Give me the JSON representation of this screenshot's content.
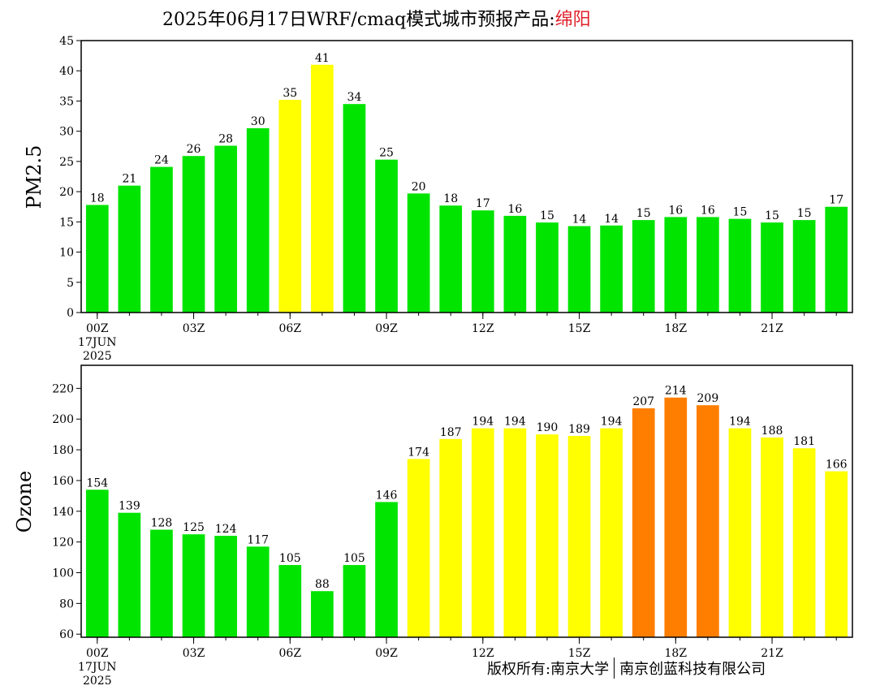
{
  "title": {
    "prefix": "2025年06月17日WRF/cmaq模式城市预报产品:",
    "city": "绵阳"
  },
  "footer": {
    "left": "版权所有:南京大学",
    "right": "南京创蓝科技有限公司"
  },
  "colors": {
    "good": "#00e400",
    "moderate": "#ffff00",
    "unhealthy_sensitive": "#ff7e00"
  },
  "chart_data": [
    {
      "type": "bar",
      "ylabel": "PM2.5",
      "ylim": [
        0,
        45
      ],
      "yticks": [
        0,
        5,
        10,
        15,
        20,
        25,
        30,
        35,
        40,
        45
      ],
      "x_tick_labels": [
        {
          "index": 0,
          "lines": [
            "00Z",
            "17JUN",
            "2025"
          ]
        },
        {
          "index": 3,
          "lines": [
            "03Z"
          ]
        },
        {
          "index": 6,
          "lines": [
            "06Z"
          ]
        },
        {
          "index": 9,
          "lines": [
            "09Z"
          ]
        },
        {
          "index": 12,
          "lines": [
            "12Z"
          ]
        },
        {
          "index": 15,
          "lines": [
            "15Z"
          ]
        },
        {
          "index": 18,
          "lines": [
            "18Z"
          ]
        },
        {
          "index": 21,
          "lines": [
            "21Z"
          ]
        }
      ],
      "values": [
        17.8,
        21.0,
        24.1,
        25.9,
        27.6,
        30.5,
        35.2,
        41.0,
        34.5,
        25.3,
        19.7,
        17.7,
        16.9,
        16.0,
        14.9,
        14.3,
        14.4,
        15.3,
        15.8,
        15.8,
        15.5,
        14.9,
        15.3,
        17.5
      ],
      "labels": [
        "18",
        "21",
        "24",
        "26",
        "28",
        "30",
        "35",
        "41",
        "34",
        "25",
        "20",
        "18",
        "17",
        "16",
        "15",
        "14",
        "14",
        "15",
        "16",
        "16",
        "15",
        "15",
        "15",
        "17"
      ],
      "colors": [
        "good",
        "good",
        "good",
        "good",
        "good",
        "good",
        "moderate",
        "moderate",
        "good",
        "good",
        "good",
        "good",
        "good",
        "good",
        "good",
        "good",
        "good",
        "good",
        "good",
        "good",
        "good",
        "good",
        "good",
        "good"
      ]
    },
    {
      "type": "bar",
      "ylabel": "Ozone",
      "ylim": [
        58,
        235
      ],
      "yticks": [
        60,
        80,
        100,
        120,
        140,
        160,
        180,
        200,
        220
      ],
      "x_tick_labels": [
        {
          "index": 0,
          "lines": [
            "00Z",
            "17JUN",
            "2025"
          ]
        },
        {
          "index": 3,
          "lines": [
            "03Z"
          ]
        },
        {
          "index": 6,
          "lines": [
            "06Z"
          ]
        },
        {
          "index": 9,
          "lines": [
            "09Z"
          ]
        },
        {
          "index": 12,
          "lines": [
            "12Z"
          ]
        },
        {
          "index": 15,
          "lines": [
            "15Z"
          ]
        },
        {
          "index": 18,
          "lines": [
            "18Z"
          ]
        },
        {
          "index": 21,
          "lines": [
            "21Z"
          ]
        }
      ],
      "values": [
        154,
        139,
        128,
        125,
        124,
        117,
        105,
        88,
        105,
        146,
        174,
        187,
        194,
        194,
        190,
        189,
        194,
        207,
        214,
        209,
        194,
        188,
        181,
        166
      ],
      "labels": [
        "154",
        "139",
        "128",
        "125",
        "124",
        "117",
        "105",
        "88",
        "105",
        "146",
        "174",
        "187",
        "194",
        "194",
        "190",
        "189",
        "194",
        "207",
        "214",
        "209",
        "194",
        "188",
        "181",
        "166"
      ],
      "colors": [
        "good",
        "good",
        "good",
        "good",
        "good",
        "good",
        "good",
        "good",
        "good",
        "good",
        "moderate",
        "moderate",
        "moderate",
        "moderate",
        "moderate",
        "moderate",
        "moderate",
        "unhealthy_sensitive",
        "unhealthy_sensitive",
        "unhealthy_sensitive",
        "moderate",
        "moderate",
        "moderate",
        "moderate"
      ]
    }
  ]
}
